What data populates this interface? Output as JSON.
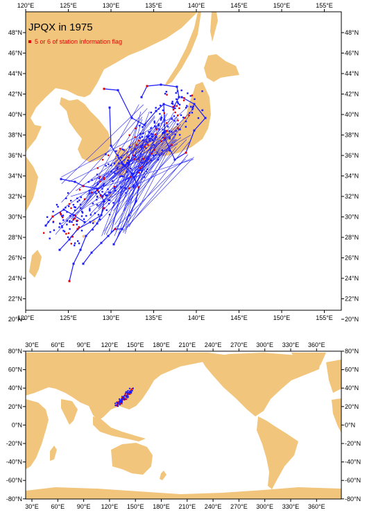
{
  "title": "JPQX in 1975",
  "legend": {
    "label": "5 or 6 of station information flag",
    "color": "#e00000"
  },
  "colors": {
    "land": "#f2c57c",
    "track": "#1a1aff",
    "flagged": "#e00000",
    "frame": "#000000"
  },
  "regional_map": {
    "lon_range": [
      120,
      157
    ],
    "lat_range": [
      19,
      49
    ],
    "lon_ticks": [
      "120°E",
      "125°E",
      "130°E",
      "135°E",
      "140°E",
      "145°E",
      "150°E",
      "155°E"
    ],
    "lat_ticks": [
      "20°N",
      "22°N",
      "24°N",
      "26°N",
      "28°N",
      "30°N",
      "32°N",
      "34°N",
      "36°N",
      "38°N",
      "40°N",
      "42°N",
      "44°N",
      "46°N",
      "48°N"
    ]
  },
  "global_map": {
    "lon_range": [
      20,
      370
    ],
    "lat_range": [
      -80,
      80
    ],
    "lon_ticks": [
      "30°E",
      "60°E",
      "90°E",
      "120°E",
      "150°E",
      "180°E",
      "210°E",
      "240°E",
      "270°E",
      "300°E",
      "330°E",
      "360°E"
    ],
    "lat_ticks": [
      "80°N",
      "60°N",
      "40°N",
      "20°N",
      "0°N",
      "-20°N",
      "-40°N",
      "-60°N",
      "-80°N"
    ]
  }
}
